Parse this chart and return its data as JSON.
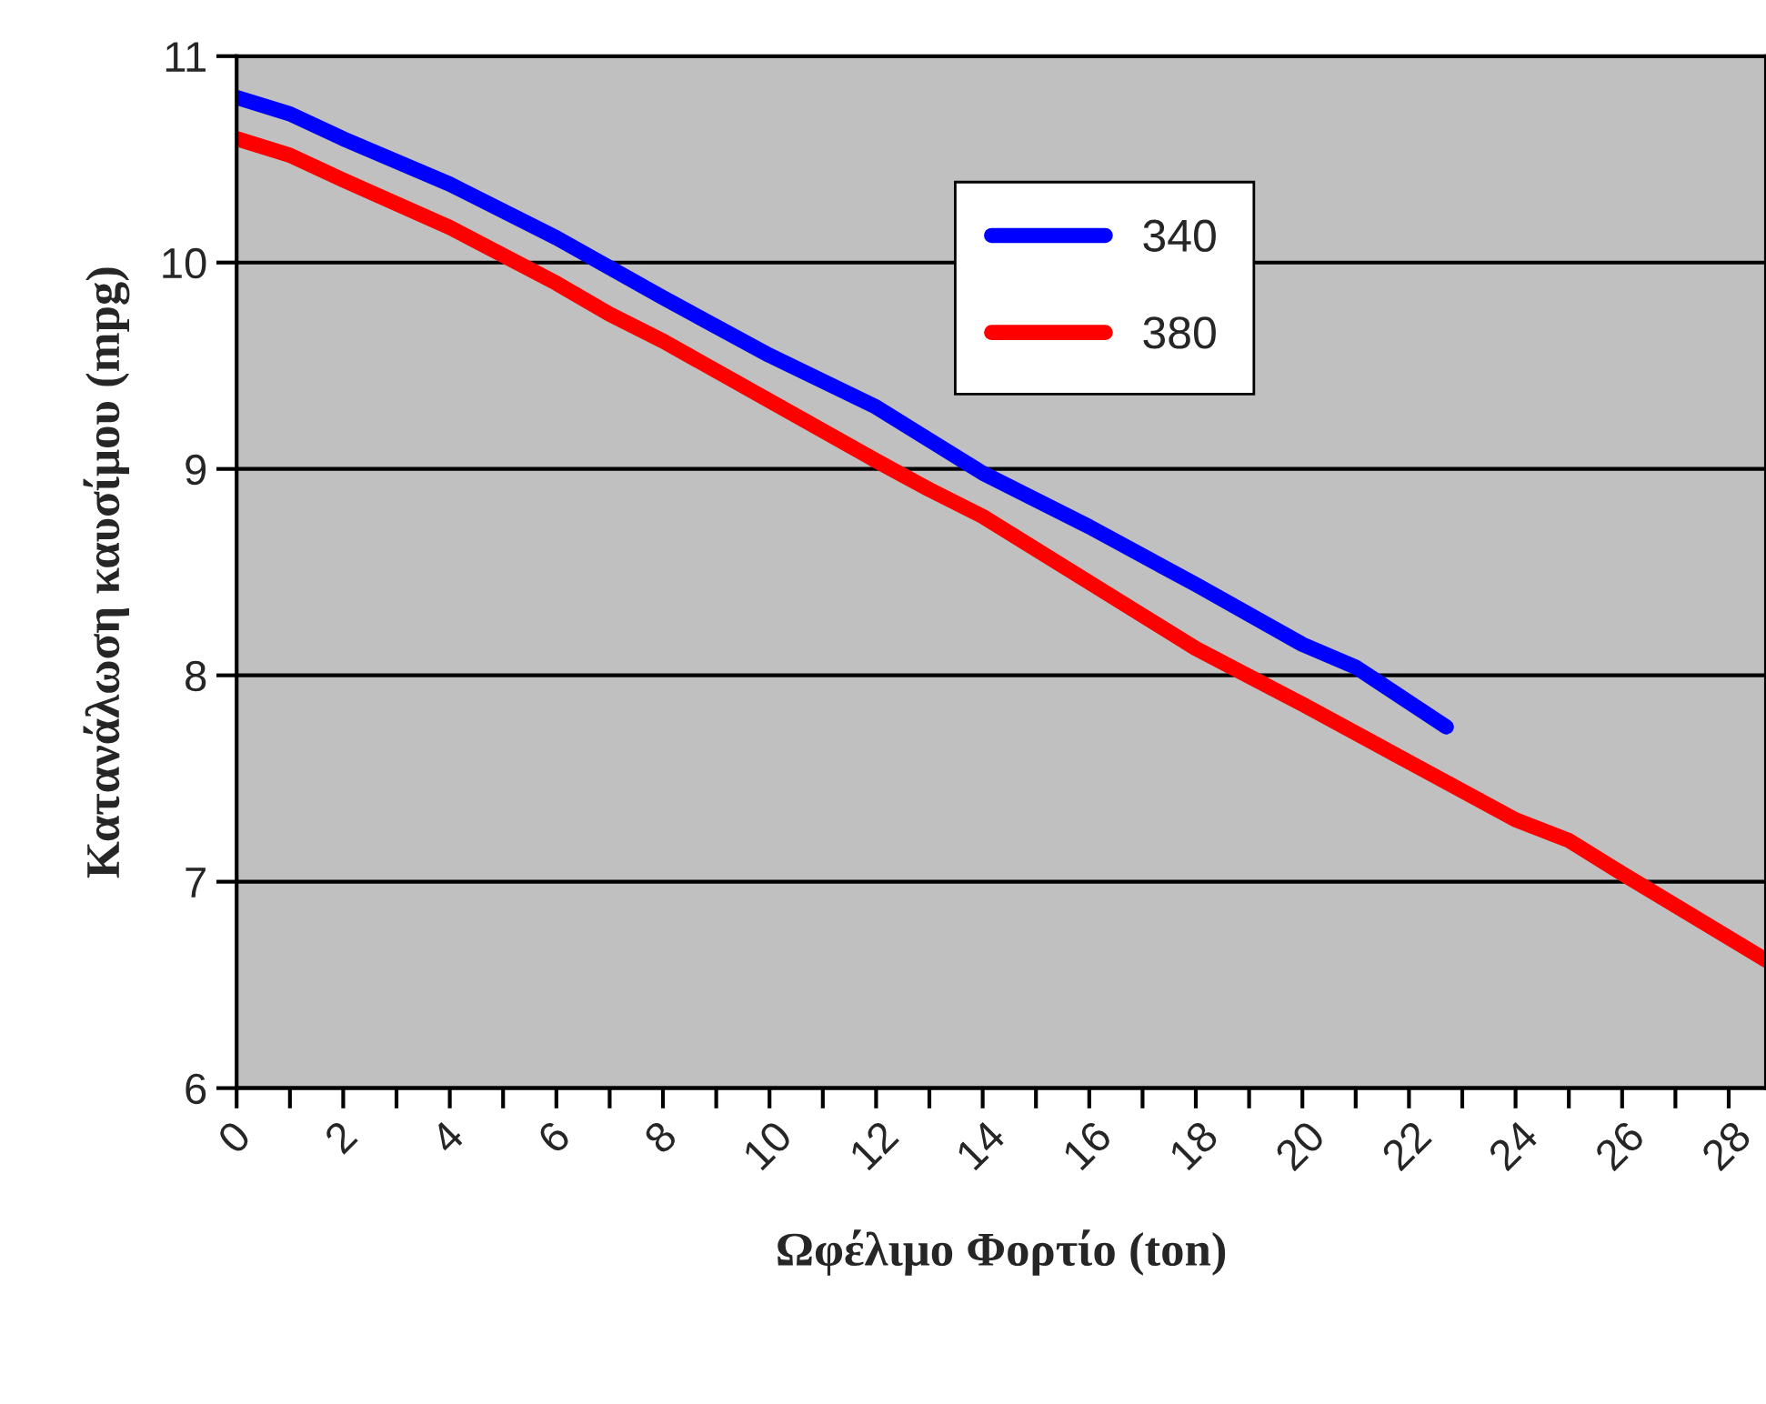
{
  "chart_data": {
    "type": "line",
    "xlabel": "Ωφέλιμο Φορτίο (ton)",
    "ylabel": "Κατανάλωση καυσίμου (mpg)",
    "xlim": [
      0,
      28.7
    ],
    "ylim": [
      6,
      11
    ],
    "xticks": [
      0,
      {
        "value": 1,
        "label": null
      },
      2,
      {
        "value": 3,
        "label": null
      },
      4,
      {
        "value": 5,
        "label": null
      },
      6,
      {
        "value": 7,
        "label": null
      },
      8,
      {
        "value": 9,
        "label": null
      },
      10,
      {
        "value": 11,
        "label": null
      },
      12,
      {
        "value": 13,
        "label": null
      },
      14,
      {
        "value": 15,
        "label": null
      },
      16,
      {
        "value": 17,
        "label": null
      },
      18,
      {
        "value": 19,
        "label": null
      },
      20,
      {
        "value": 21,
        "label": null
      },
      22,
      {
        "value": 23,
        "label": null
      },
      24,
      {
        "value": 25,
        "label": null
      },
      26,
      {
        "value": 27,
        "label": null
      },
      28
    ],
    "yticks": [
      6,
      7,
      8,
      9,
      10,
      11
    ],
    "grid": "y",
    "legend": "top",
    "series": [
      {
        "name": "340",
        "color": "#0000ff",
        "x": [
          0,
          1,
          2,
          4,
          6,
          8,
          10,
          12,
          14,
          16,
          18,
          20,
          21,
          22.7
        ],
        "values": [
          10.8,
          10.72,
          10.6,
          10.38,
          10.12,
          9.83,
          9.55,
          9.3,
          8.98,
          8.72,
          8.44,
          8.15,
          8.04,
          7.75
        ]
      },
      {
        "name": "380",
        "color": "#ff0000",
        "x": [
          0,
          1,
          2,
          4,
          6,
          7,
          8,
          10,
          12,
          13,
          14,
          16,
          18,
          20,
          22,
          24,
          25,
          26,
          28.7
        ],
        "values": [
          10.6,
          10.52,
          10.4,
          10.17,
          9.9,
          9.75,
          9.62,
          9.33,
          9.04,
          8.9,
          8.77,
          8.45,
          8.13,
          7.86,
          7.58,
          7.3,
          7.2,
          7.04,
          6.62
        ]
      }
    ]
  }
}
